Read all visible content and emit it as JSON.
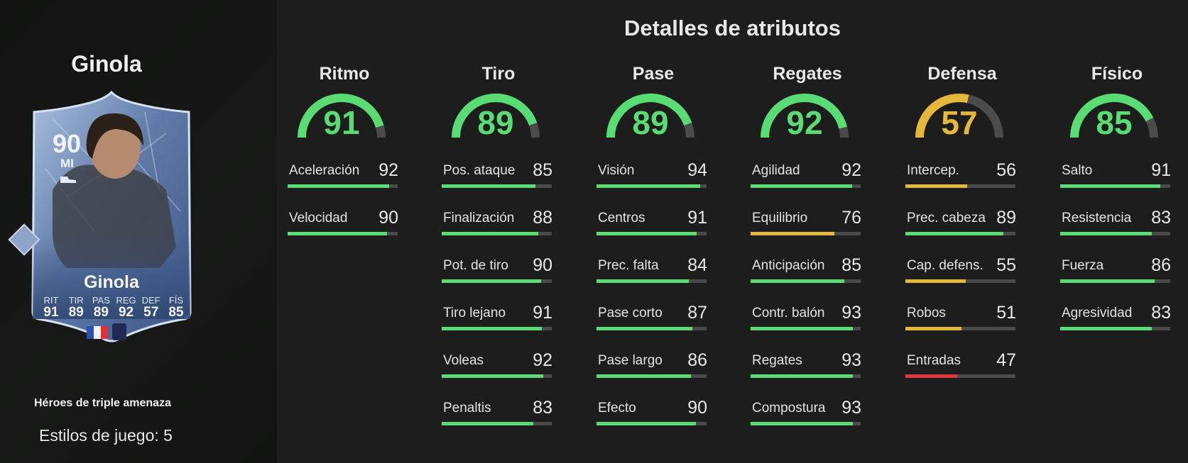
{
  "player": {
    "name": "Ginola",
    "card": {
      "rating": "90",
      "position": "MI",
      "name": "Ginola",
      "stats": [
        {
          "label": "RIT",
          "value": "91"
        },
        {
          "label": "TIR",
          "value": "89"
        },
        {
          "label": "PAS",
          "value": "89"
        },
        {
          "label": "REG",
          "value": "92"
        },
        {
          "label": "DEF",
          "value": "57"
        },
        {
          "label": "FÍS",
          "value": "85"
        }
      ]
    },
    "promo": "Héroes de triple amenaza",
    "playstyles_label": "Estilos de juego:",
    "playstyles_count": "5"
  },
  "title": "Detalles de atributos",
  "colors": {
    "high": "#59dc74",
    "mid": "#e5b83b",
    "low": "#e2373e",
    "track": "#4a4b4a",
    "background": "#1c1d1c"
  },
  "categories": [
    {
      "name": "Ritmo",
      "value": 91,
      "attributes": [
        {
          "name": "Aceleración",
          "value": 92
        },
        {
          "name": "Velocidad",
          "value": 90
        }
      ]
    },
    {
      "name": "Tiro",
      "value": 89,
      "attributes": [
        {
          "name": "Pos. ataque",
          "value": 85
        },
        {
          "name": "Finalización",
          "value": 88
        },
        {
          "name": "Pot. de tiro",
          "value": 90
        },
        {
          "name": "Tiro lejano",
          "value": 91
        },
        {
          "name": "Voleas",
          "value": 92
        },
        {
          "name": "Penaltis",
          "value": 83
        }
      ]
    },
    {
      "name": "Pase",
      "value": 89,
      "attributes": [
        {
          "name": "Visión",
          "value": 94
        },
        {
          "name": "Centros",
          "value": 91
        },
        {
          "name": "Prec. falta",
          "value": 84
        },
        {
          "name": "Pase corto",
          "value": 87
        },
        {
          "name": "Pase largo",
          "value": 86
        },
        {
          "name": "Efecto",
          "value": 90
        }
      ]
    },
    {
      "name": "Regates",
      "value": 92,
      "attributes": [
        {
          "name": "Agilidad",
          "value": 92
        },
        {
          "name": "Equilibrio",
          "value": 76
        },
        {
          "name": "Anticipación",
          "value": 85
        },
        {
          "name": "Contr. balón",
          "value": 93
        },
        {
          "name": "Regates",
          "value": 93
        },
        {
          "name": "Compostura",
          "value": 93
        }
      ]
    },
    {
      "name": "Defensa",
      "value": 57,
      "attributes": [
        {
          "name": "Intercep.",
          "value": 56
        },
        {
          "name": "Prec. cabeza",
          "value": 89
        },
        {
          "name": "Cap. defens.",
          "value": 55
        },
        {
          "name": "Robos",
          "value": 51
        },
        {
          "name": "Entradas",
          "value": 47
        }
      ]
    },
    {
      "name": "Físico",
      "value": 85,
      "attributes": [
        {
          "name": "Salto",
          "value": 91
        },
        {
          "name": "Resistencia",
          "value": 83
        },
        {
          "name": "Fuerza",
          "value": 86
        },
        {
          "name": "Agresividad",
          "value": 83
        }
      ]
    }
  ]
}
